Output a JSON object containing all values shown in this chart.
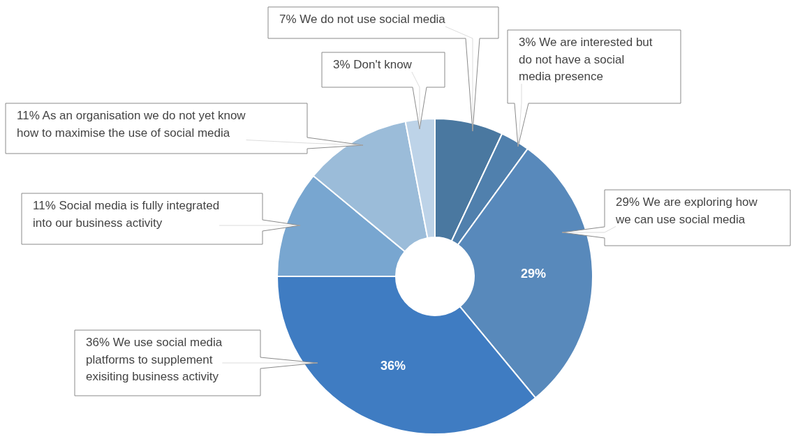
{
  "chart_data": {
    "type": "donut",
    "categories": [
      "7% We do not use social media",
      "3% We are interested but do not have a social media presence",
      "29% We are exploring how we can use social media",
      "36% We use social media platforms to supplement exisiting business activity",
      "11% Social media is fully integrated into our business activity",
      "11% As an organisation we do not yet know how to maximise the use of social media",
      "3% Don't know"
    ],
    "values": [
      7,
      3,
      29,
      36,
      11,
      11,
      3
    ],
    "colors": [
      "#4a78a0",
      "#5080ad",
      "#5889bb",
      "#3f7cc2",
      "#78a6d0",
      "#9bbcd9",
      "#bdd3e8"
    ],
    "value_labels": [
      null,
      null,
      "29%",
      "36%",
      null,
      null,
      null
    ],
    "legend": false
  }
}
